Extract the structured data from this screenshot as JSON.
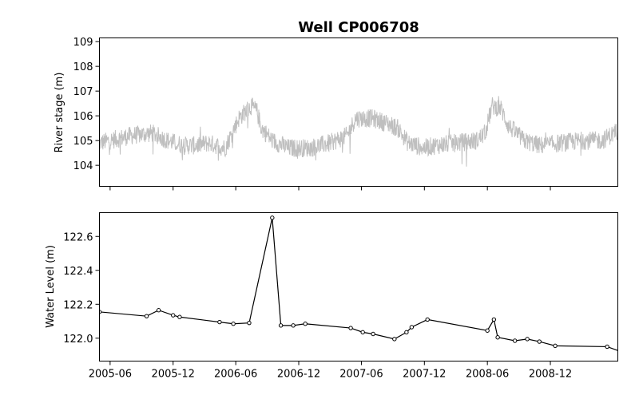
{
  "figure": {
    "title": "Well CP006708"
  },
  "chart_data": [
    {
      "type": "line",
      "panel": "top",
      "title": "Well CP006708",
      "xlabel": "",
      "ylabel": "River stage (m)",
      "ylim": [
        103.15,
        109.15
      ],
      "yticks": [
        104,
        105,
        106,
        107,
        108,
        109
      ],
      "xlim": [
        "2005-05-01",
        "2009-06-15"
      ],
      "xticks": [
        "2005-06",
        "2005-12",
        "2006-06",
        "2006-12",
        "2007-06",
        "2007-12",
        "2008-06",
        "2008-12"
      ],
      "xtick_labels_visible": false,
      "grid": false,
      "series": [
        {
          "color": "#bfbfbf",
          "style": "dense noisy daily trace",
          "baseline": [
            [
              "2005-05-01",
              104.9
            ],
            [
              "2005-08-01",
              105.2
            ],
            [
              "2005-10-01",
              105.3
            ],
            [
              "2005-11-15",
              105.0
            ],
            [
              "2006-01-01",
              104.8
            ],
            [
              "2006-02-01",
              104.8
            ],
            [
              "2006-03-15",
              104.9
            ],
            [
              "2006-05-01",
              104.7
            ],
            [
              "2006-06-10",
              105.9
            ],
            [
              "2006-07-15",
              106.4
            ],
            [
              "2006-08-01",
              106.2
            ],
            [
              "2006-08-15",
              105.5
            ],
            [
              "2006-09-15",
              105.0
            ],
            [
              "2006-11-01",
              104.7
            ],
            [
              "2007-01-01",
              104.7
            ],
            [
              "2007-03-01",
              104.9
            ],
            [
              "2007-04-20",
              105.2
            ],
            [
              "2007-05-15",
              105.9
            ],
            [
              "2007-07-01",
              105.9
            ],
            [
              "2007-08-15",
              105.7
            ],
            [
              "2007-09-15",
              105.5
            ],
            [
              "2007-10-15",
              104.9
            ],
            [
              "2007-12-01",
              104.7
            ],
            [
              "2008-01-01",
              104.8
            ],
            [
              "2008-03-01",
              104.9
            ],
            [
              "2008-05-01",
              105.0
            ],
            [
              "2008-05-25",
              105.3
            ],
            [
              "2008-06-15",
              106.4
            ],
            [
              "2008-07-10",
              106.3
            ],
            [
              "2008-08-01",
              105.6
            ],
            [
              "2008-09-15",
              105.0
            ],
            [
              "2008-11-01",
              104.8
            ],
            [
              "2009-01-01",
              104.9
            ],
            [
              "2009-03-01",
              105.0
            ],
            [
              "2009-05-01",
              105.0
            ],
            [
              "2009-06-15",
              105.4
            ]
          ],
          "min": 103.7,
          "max": 107.15
        }
      ]
    },
    {
      "type": "line",
      "panel": "bottom",
      "xlabel": "",
      "ylabel": "Water Level (m)",
      "ylim": [
        121.865,
        122.74
      ],
      "yticks": [
        122.0,
        122.2,
        122.4,
        122.6
      ],
      "ytick_labels": [
        "122.0",
        "122.2",
        "122.4",
        "122.6"
      ],
      "xlim": [
        "2005-05-01",
        "2009-06-15"
      ],
      "xticks": [
        "2005-06",
        "2005-12",
        "2006-06",
        "2006-12",
        "2007-06",
        "2007-12",
        "2008-06",
        "2008-12"
      ],
      "grid": false,
      "series": [
        {
          "color": "#000000",
          "marker": "circle",
          "points": [
            [
              "2005-05-01",
              122.155
            ],
            [
              "2005-09-15",
              122.13
            ],
            [
              "2005-10-20",
              122.165
            ],
            [
              "2005-12-01",
              122.135
            ],
            [
              "2005-12-20",
              122.125
            ],
            [
              "2006-04-15",
              122.095
            ],
            [
              "2006-05-25",
              122.085
            ],
            [
              "2006-07-10",
              122.09
            ],
            [
              "2006-09-15",
              122.71
            ],
            [
              "2006-10-10",
              122.075
            ],
            [
              "2006-11-15",
              122.075
            ],
            [
              "2006-12-20",
              122.085
            ],
            [
              "2007-05-01",
              122.06
            ],
            [
              "2007-06-05",
              122.035
            ],
            [
              "2007-07-05",
              122.025
            ],
            [
              "2007-09-05",
              121.995
            ],
            [
              "2007-10-10",
              122.035
            ],
            [
              "2007-10-25",
              122.065
            ],
            [
              "2007-12-10",
              122.11
            ],
            [
              "2008-06-01",
              122.045
            ],
            [
              "2008-06-20",
              122.11
            ],
            [
              "2008-07-01",
              122.005
            ],
            [
              "2008-08-20",
              121.985
            ],
            [
              "2008-09-25",
              121.995
            ],
            [
              "2008-10-30",
              121.98
            ],
            [
              "2008-12-15",
              121.955
            ],
            [
              "2009-05-15",
              121.95
            ],
            [
              "2009-07-15",
              121.905
            ],
            [
              "2009-09-25",
              121.945
            ]
          ]
        }
      ]
    }
  ]
}
